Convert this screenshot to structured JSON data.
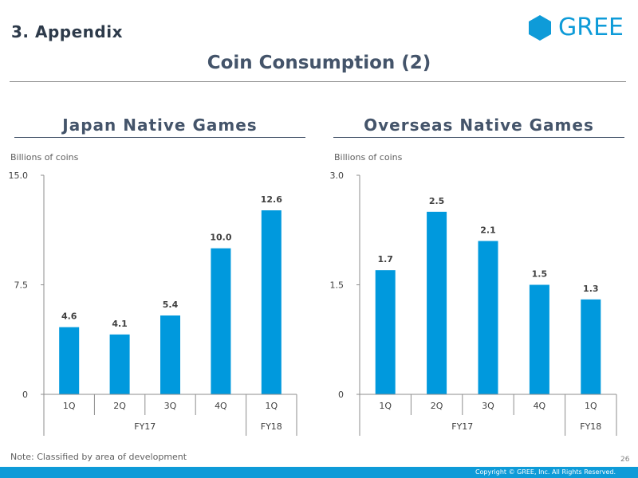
{
  "header": {
    "section": "3. Appendix",
    "logo_text": "GREE",
    "title": "Coin Consumption (2)"
  },
  "colors": {
    "bar": "#0099dd",
    "heading": "#44546a",
    "footer": "#0e9bd8"
  },
  "chart_data": [
    {
      "type": "bar",
      "title": "Japan Native Games",
      "ylabel": "Billions of coins",
      "yticks": [
        "0",
        "7.5",
        "15.0"
      ],
      "ylim": [
        0,
        15
      ],
      "categories": [
        "1Q",
        "2Q",
        "3Q",
        "4Q",
        "1Q"
      ],
      "groups": [
        {
          "label": "FY17",
          "count": 4
        },
        {
          "label": "FY18",
          "count": 1
        }
      ],
      "values": [
        4.6,
        4.1,
        5.4,
        10.0,
        12.6
      ],
      "data_labels": [
        "4.6",
        "4.1",
        "5.4",
        "10.0",
        "12.6"
      ]
    },
    {
      "type": "bar",
      "title": "Overseas Native Games",
      "ylabel": "Billions of coins",
      "yticks": [
        "0",
        "1.5",
        "3.0"
      ],
      "ylim": [
        0,
        3
      ],
      "categories": [
        "1Q",
        "2Q",
        "3Q",
        "4Q",
        "1Q"
      ],
      "groups": [
        {
          "label": "FY17",
          "count": 4
        },
        {
          "label": "FY18",
          "count": 1
        }
      ],
      "values": [
        1.7,
        2.5,
        2.1,
        1.5,
        1.3
      ],
      "data_labels": [
        "1.7",
        "2.5",
        "2.1",
        "1.5",
        "1.3"
      ]
    }
  ],
  "footer": {
    "note": "Note: Classified by area of development",
    "page": "26",
    "copyright": "Copyright © GREE, Inc. All Rights Reserved."
  }
}
